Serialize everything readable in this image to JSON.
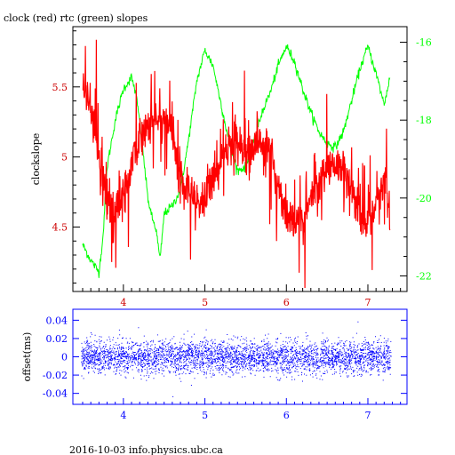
{
  "header": {
    "title": "clock (red) rtc (green) slopes"
  },
  "footer": {
    "caption": "2016-10-03 info.physics.ubc.ca"
  },
  "colors": {
    "red": "#ff0000",
    "green": "#00ff00",
    "blue": "#0000ff",
    "axis": "#000000",
    "darkred": "#cc0000"
  },
  "chart_data": [
    {
      "type": "line",
      "title": "clock (red) rtc (green) slopes",
      "ylabel": "clockslope",
      "xlim": [
        3.38,
        7.48
      ],
      "ylim": [
        4.04,
        5.93
      ],
      "ylim_right": [
        -22.4,
        -15.6
      ],
      "x_ticks": [
        4,
        5,
        6,
        7
      ],
      "x_tick_labels": [
        "4",
        "5",
        "6",
        "7"
      ],
      "y_ticks": [
        4.5,
        5,
        5.5
      ],
      "y_tick_labels": [
        "4.5",
        "5",
        "5.5"
      ],
      "y_ticks_right": [
        -22,
        -20,
        -18,
        -16
      ],
      "y_tick_labels_right": [
        "-22",
        "-20",
        "-18",
        "-16"
      ],
      "series": [
        {
          "name": "clock",
          "axis": "left",
          "color": "#ff0000",
          "x": [
            3.5,
            3.55,
            3.6,
            3.65,
            3.7,
            3.75,
            3.8,
            3.9,
            4.0,
            4.1,
            4.2,
            4.3,
            4.4,
            4.5,
            4.55,
            4.6,
            4.65,
            4.7,
            4.8,
            4.9,
            5.0,
            5.1,
            5.2,
            5.3,
            5.4,
            5.5,
            5.6,
            5.7,
            5.8,
            5.9,
            6.0,
            6.1,
            6.2,
            6.3,
            6.4,
            6.5,
            6.6,
            6.7,
            6.8,
            6.9,
            7.0,
            7.1,
            7.2,
            7.27
          ],
          "y": [
            5.45,
            5.5,
            5.4,
            5.2,
            4.95,
            4.8,
            4.65,
            4.6,
            4.75,
            4.95,
            5.15,
            5.25,
            5.27,
            5.28,
            5.25,
            5.2,
            5.0,
            4.85,
            4.75,
            4.65,
            4.7,
            4.85,
            5.0,
            5.08,
            5.1,
            5.1,
            5.08,
            5.1,
            5.0,
            4.8,
            4.6,
            4.5,
            4.55,
            4.7,
            4.85,
            4.9,
            4.95,
            4.92,
            4.8,
            4.6,
            4.5,
            4.7,
            4.85,
            4.6
          ],
          "noise": 0.22
        },
        {
          "name": "rtc",
          "axis": "right",
          "color": "#00ff00",
          "x": [
            3.5,
            3.6,
            3.7,
            3.75,
            3.8,
            3.9,
            4.0,
            4.1,
            4.15,
            4.2,
            4.3,
            4.35,
            4.4,
            4.45,
            4.5,
            4.6,
            4.7,
            4.8,
            4.9,
            5.0,
            5.1,
            5.2,
            5.3,
            5.4,
            5.5,
            5.6,
            5.7,
            5.8,
            5.9,
            6.0,
            6.1,
            6.2,
            6.3,
            6.4,
            6.5,
            6.6,
            6.7,
            6.8,
            6.9,
            7.0,
            7.1,
            7.2,
            7.27
          ],
          "y": [
            -21.2,
            -21.6,
            -21.9,
            -21.0,
            -19.2,
            -18.0,
            -17.2,
            -16.9,
            -17.3,
            -18.0,
            -20.0,
            -20.5,
            -20.8,
            -21.6,
            -20.4,
            -20.2,
            -19.8,
            -18.5,
            -17.0,
            -16.2,
            -16.6,
            -17.6,
            -18.6,
            -19.3,
            -19.2,
            -18.6,
            -17.8,
            -17.3,
            -16.6,
            -16.1,
            -16.5,
            -17.2,
            -17.8,
            -18.3,
            -18.6,
            -18.7,
            -18.3,
            -17.5,
            -16.7,
            -16.1,
            -16.8,
            -17.6,
            -16.9
          ],
          "noise": 0.12
        }
      ]
    },
    {
      "type": "scatter",
      "ylabel": "offset(ms)",
      "xlim": [
        3.38,
        7.48
      ],
      "ylim": [
        -0.052,
        0.052
      ],
      "x_ticks": [
        4,
        5,
        6,
        7
      ],
      "x_tick_labels": [
        "4",
        "5",
        "6",
        "7"
      ],
      "y_ticks": [
        -0.04,
        -0.02,
        0,
        0.02,
        0.04
      ],
      "y_tick_labels": [
        "-0.04",
        "-0.02",
        "0",
        "0.02",
        "0.04"
      ],
      "series": [
        {
          "name": "offset",
          "color": "#0000ff",
          "x_range": [
            3.48,
            7.28
          ],
          "center": 0,
          "spread": 0.012,
          "count": 4000
        }
      ]
    }
  ]
}
